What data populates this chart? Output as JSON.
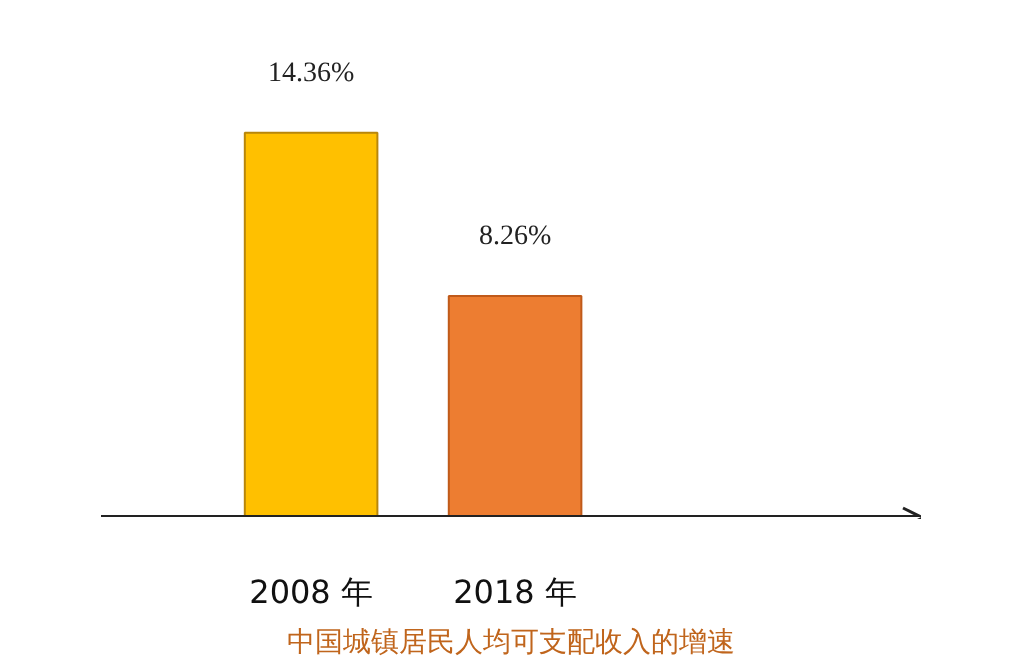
{
  "chart_data": {
    "type": "bar",
    "categories": [
      "2008 年",
      "2018 年"
    ],
    "values": [
      14.36,
      8.26
    ],
    "colors": [
      "#ffc000",
      "#ed7d31"
    ],
    "value_labels": [
      "14.36%",
      "8.26%"
    ],
    "annotations": [
      "中国城镇居民人均可支配收入的增速"
    ],
    "grid": false
  }
}
